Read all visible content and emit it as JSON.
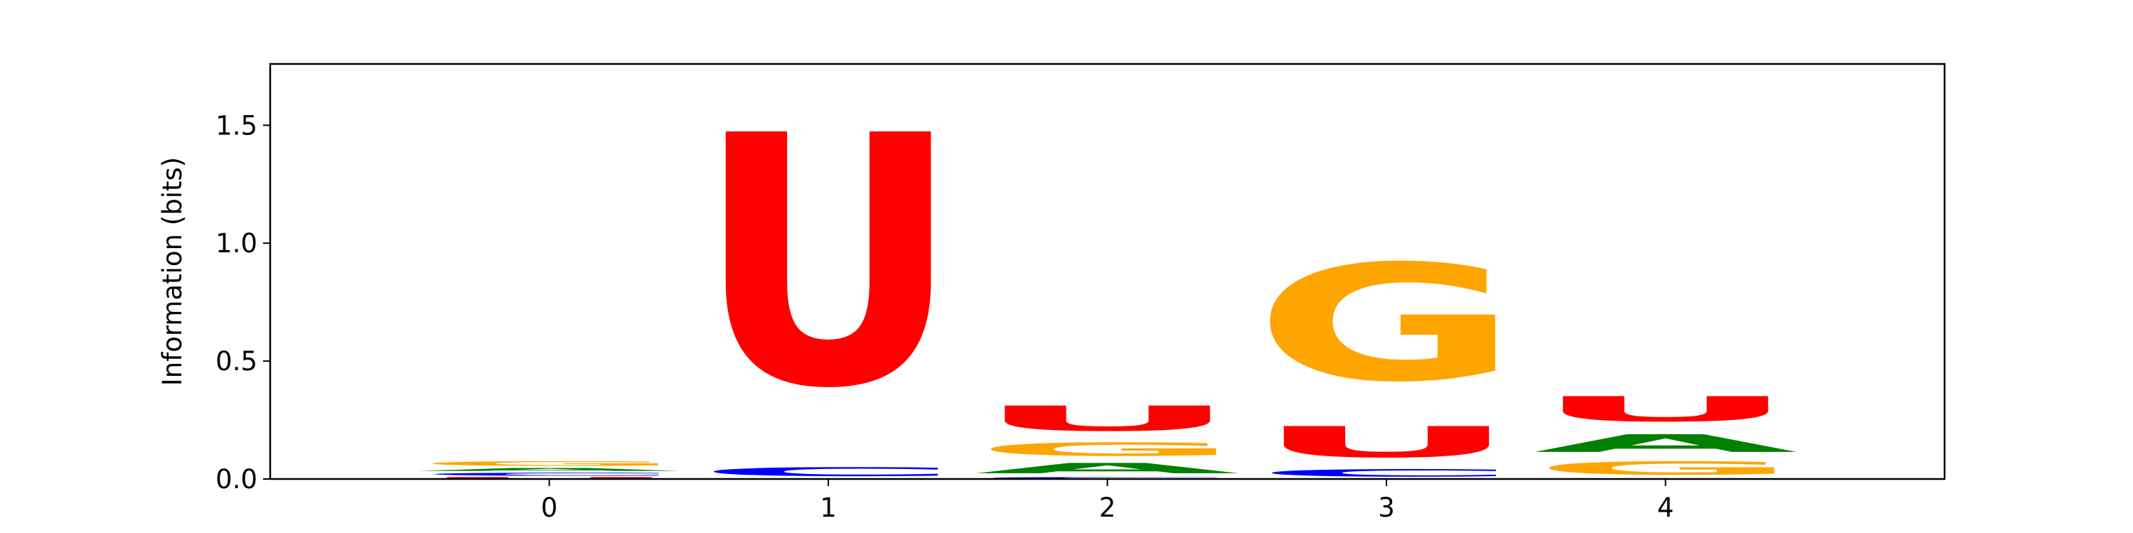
{
  "chart_data": {
    "type": "sequence-logo",
    "title": "",
    "xlabel": "",
    "ylabel": "Information (bits)",
    "xlim": [
      -1,
      5
    ],
    "ylim": [
      0,
      1.76
    ],
    "x_ticks": [
      "0",
      "1",
      "2",
      "3",
      "4"
    ],
    "y_ticks": [
      "0.0",
      "0.5",
      "1.0",
      "1.5"
    ],
    "grid": false,
    "colors": {
      "A": "#008000",
      "C": "#0000ff",
      "G": "#ffa500",
      "U": "#ff0000"
    },
    "positions": [
      {
        "x": 0,
        "letters": [
          {
            "base": "U",
            "bits": 0.01
          },
          {
            "base": "C",
            "bits": 0.02
          },
          {
            "base": "A",
            "bits": 0.02
          },
          {
            "base": "G",
            "bits": 0.03
          }
        ]
      },
      {
        "x": 1,
        "letters": [
          {
            "base": "C",
            "bits": 0.06
          },
          {
            "base": "U",
            "bits": 1.7
          }
        ]
      },
      {
        "x": 2,
        "letters": [
          {
            "base": "C",
            "bits": 0.01
          },
          {
            "base": "A",
            "bits": 0.07
          },
          {
            "base": "G",
            "bits": 0.09
          },
          {
            "base": "U",
            "bits": 0.17
          }
        ]
      },
      {
        "x": 3,
        "letters": [
          {
            "base": "C",
            "bits": 0.05
          },
          {
            "base": "U",
            "bits": 0.21
          },
          {
            "base": "G",
            "bits": 0.79
          }
        ]
      },
      {
        "x": 4,
        "letters": [
          {
            "base": "G",
            "bits": 0.09
          },
          {
            "base": "A",
            "bits": 0.12
          },
          {
            "base": "U",
            "bits": 0.17
          }
        ]
      }
    ]
  }
}
